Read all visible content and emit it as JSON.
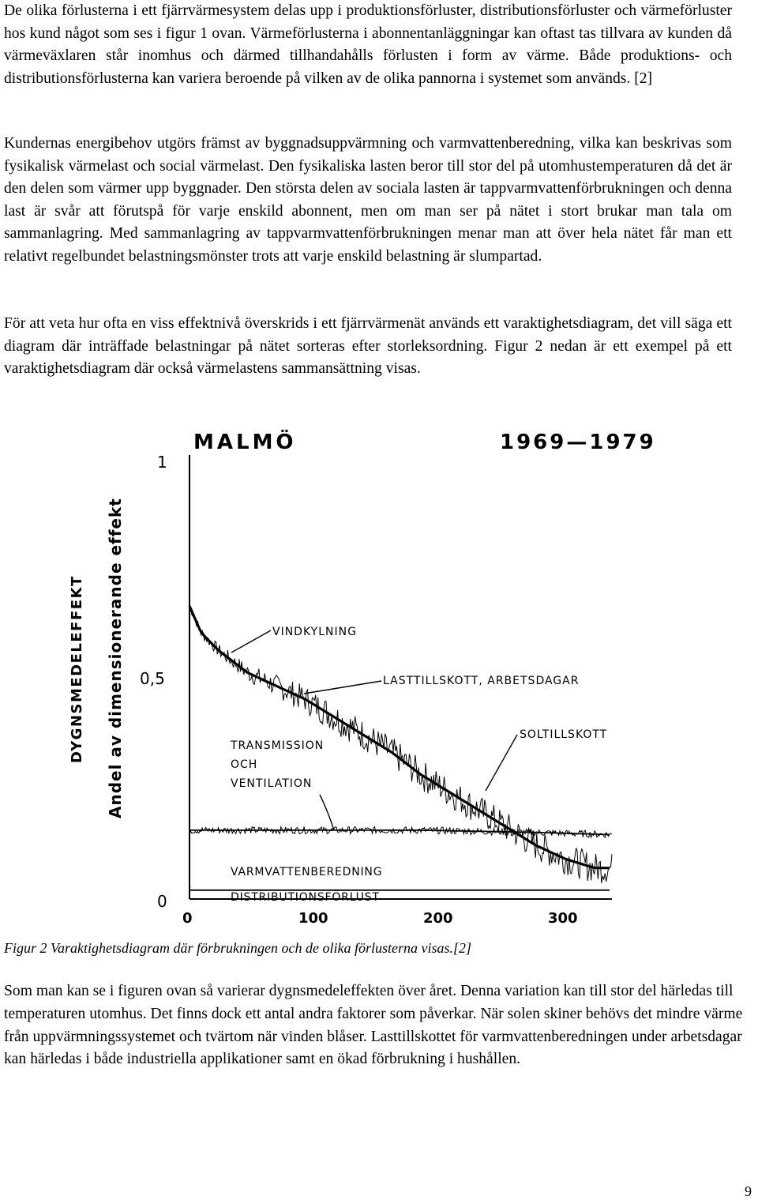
{
  "paragraphs": [
    "De olika förlusterna i ett fjärrvärmesystem delas upp i produktionsförluster, distributionsförluster och värmeförluster hos kund något som ses i figur 1 ovan. Värmeförlusterna i abonnentanläggningar kan oftast tas tillvara av kunden då värmeväxlaren står inomhus och därmed tillhandahålls förlusten i form av värme. Både produktions- och distributionsförlusterna kan variera beroende på vilken av de olika pannorna i systemet som används. [2]",
    "Kundernas energibehov utgörs främst av byggnadsuppvärmning och varmvattenberedning, vilka kan beskrivas som fysikalisk värmelast och social värmelast. Den fysikaliska lasten beror till stor del på utomhustemperaturen då det är den delen som värmer upp byggnader. Den största delen av sociala lasten är tappvarmvattenförbrukningen och denna last är svår att förutspå för varje enskild abonnent, men om man ser på nätet i stort brukar man tala om sammanlagring. Med sammanlagring av tappvarmvattenförbrukningen menar man att över hela nätet får man ett relativt regelbundet belastningsmönster trots att varje enskild belastning är slumpartad.",
    "För att veta hur ofta en viss effektnivå överskrids i ett fjärrvärmenät används ett varaktighetsdiagram, det vill säga ett diagram där inträffade belastningar på nätet sorteras efter storleksordning. Figur 2 nedan är ett exempel på ett varaktighetsdiagram där också värmelastens sammansättning visas.",
    "Som man kan se i figuren ovan så varierar dygnsmedeleffekten över året. Denna variation kan till stor del härledas till temperaturen utomhus. Det finns dock ett antal andra faktorer som påverkar. När solen skiner behövs det mindre värme från uppvärmningssystemet och tvärtom när vinden blåser. Lasttillskottet för varmvattenberedningen under arbetsdagar kan härledas i både industriella applikationer samt en ökad förbrukning i hushållen."
  ],
  "caption": "Figur 2 Varaktighetsdiagram där förbrukningen och de olika förlusterna visas.[2]",
  "page_number": "9",
  "chart_data": {
    "type": "area",
    "title": "MALMÖ",
    "subtitle": "1969—1979",
    "ylabel_outer": "DYGNSMEDELEFFEKT",
    "ylabel_inner": "Andel av dimensionerande effekt",
    "yticks": [
      "1",
      "0,5",
      "0"
    ],
    "xticks": [
      "0",
      "100",
      "200",
      "300"
    ],
    "xlim": [
      0,
      365
    ],
    "ylim": [
      0,
      1
    ],
    "annotations": {
      "vindkylning": "VINDKYLNING",
      "lasttillskott": "LASTTILLSKOTT, ARBETSDAGAR",
      "soltillskott": "SOLTILLSKOTT",
      "transmission": "TRANSMISSION",
      "och": "OCH",
      "ventilation": "VENTILATION",
      "varmvatten": "VARMVATTENBEREDNING",
      "distribution": "DISTRIBUTIONSFÖRLUST"
    },
    "series": [
      {
        "name": "TRANSMISSION OCH VENTILATION",
        "x": [
          0,
          10,
          25,
          50,
          75,
          100,
          125,
          150,
          175,
          200,
          225,
          250,
          275,
          300,
          325,
          350,
          365
        ],
        "values": [
          0.66,
          0.6,
          0.56,
          0.51,
          0.48,
          0.45,
          0.41,
          0.37,
          0.33,
          0.28,
          0.24,
          0.2,
          0.16,
          0.12,
          0.09,
          0.07,
          0.07
        ]
      },
      {
        "name": "VARMVATTENBEREDNING",
        "x": [
          0,
          100,
          200,
          300,
          365
        ],
        "values": [
          0.155,
          0.155,
          0.155,
          0.15,
          0.145
        ]
      },
      {
        "name": "DISTRIBUTIONSFÖRLUST",
        "x": [
          0,
          365
        ],
        "values": [
          0.02,
          0.02
        ]
      }
    ]
  }
}
